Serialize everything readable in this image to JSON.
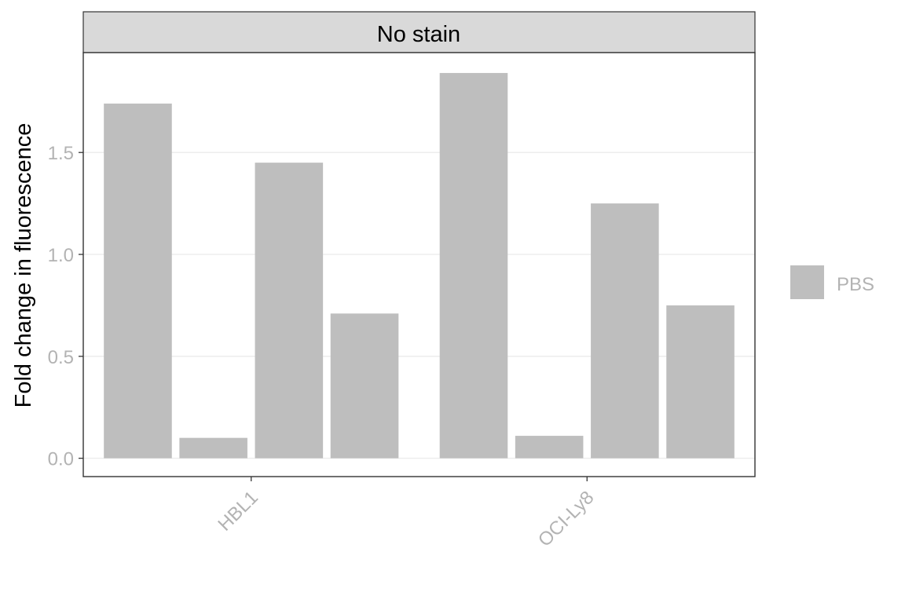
{
  "chart_data": {
    "type": "bar",
    "facet_title": "No stain",
    "categories": [
      "HBL1",
      "OCI-Ly8"
    ],
    "bars_per_category": 4,
    "series": [
      {
        "name": "PBS",
        "values": [
          [
            1.74,
            0.1,
            1.45,
            0.71
          ],
          [
            1.89,
            0.11,
            1.25,
            0.75
          ]
        ]
      }
    ],
    "ylabel": "Fold change in fluorescence",
    "xlabel": "",
    "ylim": [
      -0.09,
      1.99
    ],
    "yticks": [
      0.0,
      0.5,
      1.0,
      1.5
    ],
    "ytick_labels": [
      "0.0",
      "0.5",
      "1.0",
      "1.5"
    ],
    "grid": true,
    "legend": {
      "position": "right",
      "entries": [
        "PBS"
      ]
    },
    "colors": {
      "bar": "#bebebe",
      "grid": "#ebebeb",
      "strip_fill": "#d9d9d9",
      "panel_border": "#333333",
      "tick_label": "#b3b3b3"
    }
  }
}
